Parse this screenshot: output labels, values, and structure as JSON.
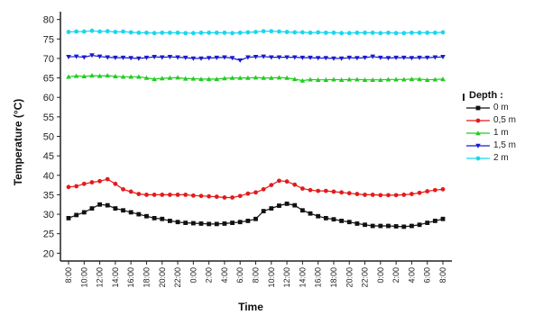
{
  "chart_data": {
    "type": "line",
    "title": "",
    "xlabel": "Time",
    "ylabel": "Temperature (°C)",
    "ylim": [
      18,
      82
    ],
    "yticks": [
      20,
      25,
      30,
      35,
      40,
      45,
      50,
      55,
      60,
      65,
      70,
      75,
      80
    ],
    "xtick_labels": [
      "8:00",
      "10:00",
      "12:00",
      "14:00",
      "16:00",
      "18:00",
      "20:00",
      "22:00",
      "0:00",
      "2:00",
      "4:00",
      "6:00",
      "8:00",
      "10:00",
      "12:00",
      "14:00",
      "16:00",
      "18:00",
      "20:00",
      "22:00",
      "0:00",
      "2:00",
      "4:00",
      "6:00",
      "8:00"
    ],
    "x_hours": [
      0,
      1,
      2,
      3,
      4,
      5,
      6,
      7,
      8,
      9,
      10,
      11,
      12,
      13,
      14,
      15,
      16,
      17,
      18,
      19,
      20,
      21,
      22,
      23,
      24,
      25,
      26,
      27,
      28,
      29,
      30,
      31,
      32,
      33,
      34,
      35,
      36,
      37,
      38,
      39,
      40,
      41,
      42,
      43,
      44,
      45,
      46,
      47,
      48
    ],
    "grid": false,
    "legend_title": "Depth :",
    "legend_position": "right",
    "series": [
      {
        "name": "0 m",
        "color": "#111111",
        "marker": "square",
        "values": [
          29.0,
          29.8,
          30.5,
          31.5,
          32.5,
          32.3,
          31.5,
          31.0,
          30.5,
          30.0,
          29.5,
          29.0,
          28.8,
          28.3,
          28.0,
          27.8,
          27.7,
          27.6,
          27.5,
          27.5,
          27.6,
          27.8,
          28.0,
          28.3,
          28.8,
          30.8,
          31.5,
          32.2,
          32.7,
          32.3,
          31.0,
          30.2,
          29.5,
          29.0,
          28.7,
          28.3,
          28.0,
          27.6,
          27.3,
          27.0,
          27.0,
          27.0,
          26.9,
          26.8,
          27.0,
          27.3,
          27.8,
          28.3,
          28.8
        ]
      },
      {
        "name": "0,5 m",
        "color": "#e31b1b",
        "marker": "circle",
        "values": [
          37.0,
          37.2,
          37.8,
          38.2,
          38.5,
          39.0,
          37.8,
          36.4,
          35.8,
          35.2,
          35.0,
          35.0,
          35.0,
          35.0,
          35.0,
          35.0,
          34.8,
          34.7,
          34.6,
          34.5,
          34.3,
          34.3,
          34.7,
          35.3,
          35.6,
          36.4,
          37.5,
          38.6,
          38.4,
          37.6,
          36.6,
          36.2,
          36.0,
          36.0,
          35.8,
          35.6,
          35.4,
          35.2,
          35.0,
          35.0,
          34.9,
          34.9,
          34.9,
          35.0,
          35.2,
          35.5,
          35.9,
          36.2,
          36.4
        ]
      },
      {
        "name": "1 m",
        "color": "#22cc22",
        "marker": "triangle-up",
        "values": [
          65.3,
          65.5,
          65.4,
          65.6,
          65.5,
          65.6,
          65.4,
          65.3,
          65.3,
          65.3,
          65.0,
          64.7,
          64.9,
          65.0,
          65.1,
          64.8,
          64.8,
          64.7,
          64.7,
          64.7,
          64.9,
          65.0,
          65.0,
          65.0,
          65.1,
          65.0,
          65.0,
          65.1,
          65.0,
          64.7,
          64.3,
          64.6,
          64.5,
          64.5,
          64.6,
          64.5,
          64.6,
          64.6,
          64.5,
          64.5,
          64.5,
          64.6,
          64.6,
          64.6,
          64.7,
          64.7,
          64.5,
          64.6,
          64.7
        ]
      },
      {
        "name": "1,5 m",
        "color": "#1a1acc",
        "marker": "triangle-down",
        "values": [
          70.4,
          70.5,
          70.3,
          70.8,
          70.5,
          70.3,
          70.2,
          70.2,
          70.1,
          70.0,
          70.2,
          70.4,
          70.3,
          70.4,
          70.3,
          70.2,
          70.0,
          70.0,
          70.1,
          70.2,
          70.3,
          70.1,
          69.5,
          70.3,
          70.4,
          70.5,
          70.3,
          70.3,
          70.3,
          70.3,
          70.2,
          70.2,
          70.1,
          70.1,
          70.0,
          70.0,
          70.2,
          70.1,
          70.2,
          70.5,
          70.2,
          70.1,
          70.2,
          70.2,
          70.1,
          70.2,
          70.2,
          70.3,
          70.4
        ]
      },
      {
        "name": "2 m",
        "color": "#1ad7ef",
        "marker": "circle",
        "values": [
          76.8,
          76.9,
          76.9,
          77.1,
          76.9,
          77.0,
          76.8,
          76.9,
          76.7,
          76.6,
          76.6,
          76.5,
          76.6,
          76.6,
          76.6,
          76.5,
          76.5,
          76.6,
          76.6,
          76.6,
          76.6,
          76.5,
          76.6,
          76.7,
          76.8,
          77.0,
          77.0,
          76.9,
          76.8,
          76.7,
          76.7,
          76.6,
          76.7,
          76.6,
          76.6,
          76.5,
          76.5,
          76.6,
          76.6,
          76.6,
          76.5,
          76.6,
          76.5,
          76.5,
          76.6,
          76.6,
          76.6,
          76.6,
          76.7
        ]
      }
    ]
  }
}
